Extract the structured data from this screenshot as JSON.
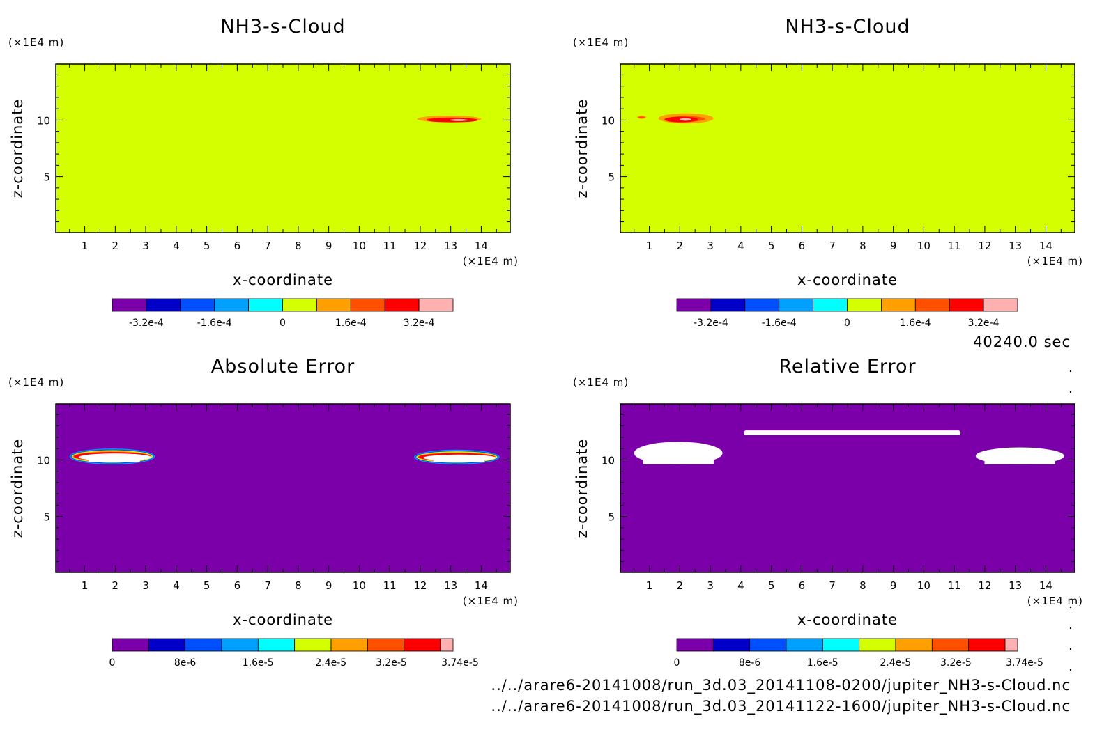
{
  "time_label": "40240.0 sec",
  "files": [
    "../../arare6-20141008/run_3d.03_20141108-0200/jupiter_NH3-s-Cloud.nc",
    "../../arare6-20141008/run_3d.03_20141122-1600/jupiter_NH3-s-Cloud.nc"
  ],
  "colors": {
    "background_top": "#d4ff00",
    "background_bottom": "#7b00aa",
    "palette": [
      "#7b00aa",
      "#0000c8",
      "#0050ff",
      "#00a0ff",
      "#00ffff",
      "#d4ff00",
      "#ffa000",
      "#ff5000",
      "#ff0000",
      "#ffb0b0"
    ]
  },
  "chart_data": [
    {
      "type": "heatmap",
      "title": "NH3-s-Cloud",
      "xlabel": "x-coordinate",
      "ylabel": "z-coordinate",
      "x_unit": "(×1E4 m)",
      "y_unit": "(×1E4 m)",
      "xlim": [
        0.05,
        14.95
      ],
      "ylim": [
        0.05,
        14.95
      ],
      "x_ticks": [
        "1",
        "2",
        "3",
        "4",
        "5",
        "6",
        "7",
        "8",
        "9",
        "10",
        "11",
        "12",
        "13",
        "14"
      ],
      "y_ticks": [
        "5",
        "10"
      ],
      "colorbar": {
        "labels": [
          "-3.2e-4",
          "-1.6e-4",
          "0",
          "1.6e-4",
          "3.2e-4"
        ],
        "label_values": [
          -0.00032,
          -0.00016,
          0,
          0.00016,
          0.00032
        ],
        "range": [
          -0.0004,
          0.0004
        ]
      },
      "features": [
        {
          "x_range": [
            11.9,
            14.0
          ],
          "z_range": [
            9.8,
            10.4
          ],
          "level": "1.6e-4"
        },
        {
          "x_range": [
            12.2,
            13.9
          ],
          "z_range": [
            9.8,
            10.2
          ],
          "level": "3.2e-4"
        }
      ]
    },
    {
      "type": "heatmap",
      "title": "NH3-s-Cloud",
      "xlabel": "x-coordinate",
      "ylabel": "z-coordinate",
      "x_unit": "(×1E4 m)",
      "y_unit": "(×1E4 m)",
      "xlim": [
        0.05,
        14.95
      ],
      "ylim": [
        0.05,
        14.95
      ],
      "x_ticks": [
        "1",
        "2",
        "3",
        "4",
        "5",
        "6",
        "7",
        "8",
        "9",
        "10",
        "11",
        "12",
        "13",
        "14"
      ],
      "y_ticks": [
        "5",
        "10"
      ],
      "colorbar": {
        "labels": [
          "-3.2e-4",
          "-1.6e-4",
          "0",
          "1.6e-4",
          "3.2e-4"
        ],
        "label_values": [
          -0.00032,
          -0.00016,
          0,
          0.00016,
          0.00032
        ],
        "range": [
          -0.0004,
          0.0004
        ]
      },
      "features": [
        {
          "x_range": [
            0.6,
            0.9
          ],
          "z_range": [
            10.1,
            10.4
          ],
          "level": "1.6e-4"
        },
        {
          "x_range": [
            1.3,
            3.1
          ],
          "z_range": [
            9.7,
            10.6
          ],
          "level": "1.6e-4"
        },
        {
          "x_range": [
            1.5,
            2.6
          ],
          "z_range": [
            9.8,
            10.3
          ],
          "level": "3.2e-4"
        }
      ]
    },
    {
      "type": "heatmap",
      "title": "Absolute Error",
      "xlabel": "x-coordinate",
      "ylabel": "z-coordinate",
      "x_unit": "(×1E4 m)",
      "y_unit": "(×1E4 m)",
      "xlim": [
        0.05,
        14.95
      ],
      "ylim": [
        0.05,
        14.95
      ],
      "x_ticks": [
        "1",
        "2",
        "3",
        "4",
        "5",
        "6",
        "7",
        "8",
        "9",
        "10",
        "11",
        "12",
        "13",
        "14"
      ],
      "y_ticks": [
        "5",
        "10"
      ],
      "colorbar": {
        "labels": [
          "0",
          "8e-6",
          "1.6e-5",
          "2.4e-5",
          "3.2e-5",
          "3.74e-5"
        ],
        "label_values": [
          0,
          8e-06,
          1.6e-05,
          2.4e-05,
          3.2e-05,
          3.74e-05
        ],
        "range": [
          0,
          3.74e-05
        ]
      },
      "features": [
        {
          "x_range": [
            0.5,
            3.3
          ],
          "z_range": [
            9.6,
            11.0
          ],
          "level": "> 3.74e-5"
        },
        {
          "x_range": [
            11.8,
            14.6
          ],
          "z_range": [
            9.6,
            10.9
          ],
          "level": "> 3.74e-5"
        }
      ]
    },
    {
      "type": "heatmap",
      "title": "Relative Error",
      "xlabel": "x-coordinate",
      "ylabel": "z-coordinate",
      "x_unit": "(×1E4 m)",
      "y_unit": "(×1E4 m)",
      "xlim": [
        0.05,
        14.95
      ],
      "ylim": [
        0.05,
        14.95
      ],
      "x_ticks": [
        "1",
        "2",
        "3",
        "4",
        "5",
        "6",
        "7",
        "8",
        "9",
        "10",
        "11",
        "12",
        "13",
        "14"
      ],
      "y_ticks": [
        "5",
        "10"
      ],
      "colorbar": {
        "labels": [
          "0",
          "8e-6",
          "1.6e-5",
          "2.4e-5",
          "3.2e-5",
          "3.74e-5"
        ],
        "label_values": [
          0,
          8e-06,
          1.6e-05,
          2.4e-05,
          3.2e-05,
          3.74e-05
        ],
        "range": [
          0,
          3.74e-05
        ]
      },
      "features": [
        {
          "x_range": [
            0.5,
            3.4
          ],
          "z_range": [
            9.6,
            11.6
          ],
          "level": "> 3.74e-5"
        },
        {
          "x_range": [
            4.1,
            11.2
          ],
          "z_range": [
            12.2,
            12.6
          ],
          "level": "> 3.74e-5"
        },
        {
          "x_range": [
            11.7,
            14.6
          ],
          "z_range": [
            9.6,
            11.1
          ],
          "level": "> 3.74e-5"
        }
      ]
    }
  ]
}
